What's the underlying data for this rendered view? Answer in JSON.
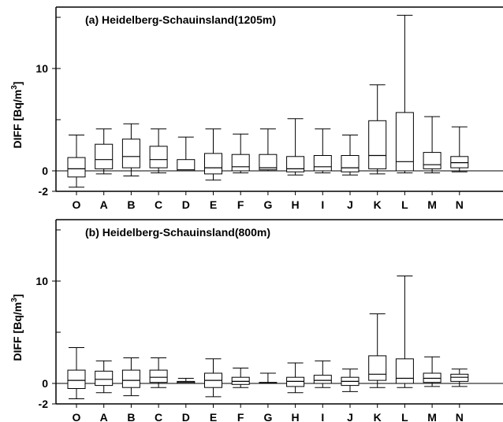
{
  "chart_data": [
    {
      "type": "box",
      "title_prefix": "(a) Heidelber",
      "title_bold": "g-S",
      "title_suffix": "chauinsland(1205m)",
      "ylabel_main": "DIFF [Bq/m",
      "ylabel_sup": "3",
      "ylabel_end": "]",
      "ylim": [
        -2,
        16
      ],
      "ticks": [
        {
          "value": -2,
          "label": "-2"
        },
        {
          "value": 0,
          "label": "0"
        },
        {
          "value": 10,
          "label": "10"
        }
      ],
      "categories": [
        "O",
        "A",
        "B",
        "C",
        "D",
        "E",
        "F",
        "G",
        "H",
        "I",
        "J",
        "K",
        "L",
        "M",
        "N"
      ],
      "boxes": [
        {
          "min": -1.6,
          "q1": -0.6,
          "median": 0.2,
          "q3": 1.3,
          "max": 3.5
        },
        {
          "min": -0.3,
          "q1": 0.2,
          "median": 1.1,
          "q3": 2.6,
          "max": 4.1
        },
        {
          "min": -0.5,
          "q1": 0.3,
          "median": 1.4,
          "q3": 3.1,
          "max": 4.6
        },
        {
          "min": -0.2,
          "q1": 0.3,
          "median": 1.1,
          "q3": 2.4,
          "max": 4.1
        },
        {
          "min": 0.0,
          "q1": 0.0,
          "median": 0.1,
          "q3": 1.1,
          "max": 3.3
        },
        {
          "min": -0.9,
          "q1": -0.3,
          "median": 0.3,
          "q3": 1.7,
          "max": 4.1
        },
        {
          "min": -0.2,
          "q1": 0.0,
          "median": 0.4,
          "q3": 1.6,
          "max": 3.6
        },
        {
          "min": 0.0,
          "q1": 0.1,
          "median": 0.3,
          "q3": 1.6,
          "max": 4.1
        },
        {
          "min": -0.4,
          "q1": -0.1,
          "median": 0.2,
          "q3": 1.4,
          "max": 5.1
        },
        {
          "min": -0.2,
          "q1": 0.0,
          "median": 0.4,
          "q3": 1.5,
          "max": 4.1
        },
        {
          "min": -0.4,
          "q1": -0.1,
          "median": 0.3,
          "q3": 1.5,
          "max": 3.5
        },
        {
          "min": -0.3,
          "q1": 0.2,
          "median": 1.5,
          "q3": 4.9,
          "max": 8.4
        },
        {
          "min": -0.2,
          "q1": 0.0,
          "median": 0.9,
          "q3": 5.7,
          "max": 15.2
        },
        {
          "min": -0.2,
          "q1": 0.2,
          "median": 0.6,
          "q3": 1.8,
          "max": 5.3
        },
        {
          "min": -0.1,
          "q1": 0.3,
          "median": 0.8,
          "q3": 1.4,
          "max": 4.3
        }
      ]
    },
    {
      "type": "box",
      "title_prefix": "(b) Heidelber",
      "title_bold": "g-S",
      "title_suffix": "chauinsland(",
      "title_bold2": "8",
      "title_suffix2": "00m)",
      "ylabel_main": "DIFF [Bq/m",
      "ylabel_sup": "3",
      "ylabel_end": "]",
      "ylim": [
        -2,
        16
      ],
      "ticks": [
        {
          "value": -2,
          "label": "-2"
        },
        {
          "value": 0,
          "label": "0"
        },
        {
          "value": 10,
          "label": "10"
        }
      ],
      "categories": [
        "O",
        "A",
        "B",
        "C",
        "D",
        "E",
        "F",
        "G",
        "H",
        "I",
        "J",
        "K",
        "L",
        "M",
        "N"
      ],
      "boxes": [
        {
          "min": -1.5,
          "q1": -0.5,
          "median": 0.3,
          "q3": 1.3,
          "max": 3.5
        },
        {
          "min": -0.9,
          "q1": -0.2,
          "median": 0.4,
          "q3": 1.2,
          "max": 2.2
        },
        {
          "min": -1.2,
          "q1": -0.4,
          "median": 0.3,
          "q3": 1.3,
          "max": 2.5
        },
        {
          "min": -0.4,
          "q1": 0.1,
          "median": 0.6,
          "q3": 1.3,
          "max": 2.5
        },
        {
          "min": 0.0,
          "q1": 0.0,
          "median": 0.1,
          "q3": 0.2,
          "max": 0.5
        },
        {
          "min": -1.3,
          "q1": -0.4,
          "median": 0.3,
          "q3": 1.0,
          "max": 2.4
        },
        {
          "min": -0.4,
          "q1": -0.1,
          "median": 0.2,
          "q3": 0.6,
          "max": 1.5
        },
        {
          "min": 0.0,
          "q1": 0.0,
          "median": 0.05,
          "q3": 0.1,
          "max": 1.0
        },
        {
          "min": -0.9,
          "q1": -0.3,
          "median": 0.2,
          "q3": 0.6,
          "max": 2.0
        },
        {
          "min": -0.4,
          "q1": 0.0,
          "median": 0.3,
          "q3": 0.8,
          "max": 2.2
        },
        {
          "min": -0.8,
          "q1": -0.2,
          "median": 0.2,
          "q3": 0.6,
          "max": 1.4
        },
        {
          "min": -0.4,
          "q1": 0.3,
          "median": 0.9,
          "q3": 2.7,
          "max": 6.8
        },
        {
          "min": -0.4,
          "q1": 0.0,
          "median": 0.5,
          "q3": 2.4,
          "max": 10.5
        },
        {
          "min": -0.3,
          "q1": 0.1,
          "median": 0.5,
          "q3": 1.0,
          "max": 2.6
        },
        {
          "min": -0.3,
          "q1": 0.2,
          "median": 0.6,
          "q3": 0.9,
          "max": 1.4
        }
      ]
    }
  ]
}
